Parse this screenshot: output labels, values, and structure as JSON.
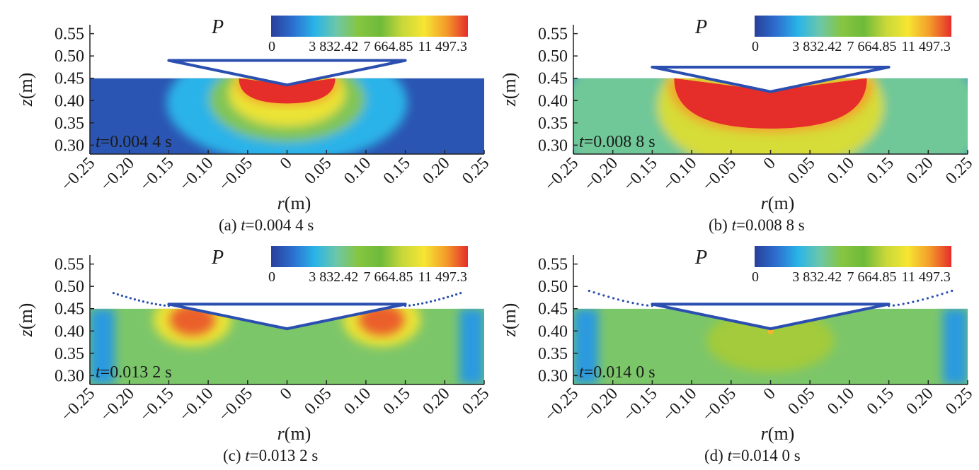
{
  "figure": {
    "panels": [
      {
        "caption_label": "(a)",
        "caption_var": "t",
        "caption_value": "=0.004 4 s",
        "time_var": "t",
        "time_value": "=0.004 4 s"
      },
      {
        "caption_label": "(b)",
        "caption_var": "t",
        "caption_value": "=0.008 8 s",
        "time_var": "t",
        "time_value": "=0.008 8 s"
      },
      {
        "caption_label": "(c)",
        "caption_var": "t",
        "caption_value": "=0.013 2 s",
        "time_var": "t",
        "time_value": "=0.013 2 s"
      },
      {
        "caption_label": "(d)",
        "caption_var": "t",
        "caption_value": "=0.014 0 s",
        "time_var": "t",
        "time_value": "=0.014 0 s"
      }
    ]
  },
  "chart_data": [
    {
      "type": "heatmap",
      "title": "P",
      "xlabel_var": "r",
      "xlabel_unit": "(m)",
      "ylabel_var": "z",
      "ylabel_unit": "(m)",
      "xlim": [
        -0.25,
        0.25
      ],
      "ylim": [
        0.28,
        0.57
      ],
      "x_ticks": [
        "−0.25",
        "−0.20",
        "−0.15",
        "−0.10",
        "−0.05",
        "0",
        "0.05",
        "0.10",
        "0.15",
        "0.20",
        "0.25"
      ],
      "x_tick_values": [
        -0.25,
        -0.2,
        -0.15,
        -0.1,
        -0.05,
        0,
        0.05,
        0.1,
        0.15,
        0.2,
        0.25
      ],
      "y_ticks": [
        "0.30",
        "0.35",
        "0.40",
        "0.45",
        "0.50",
        "0.55"
      ],
      "y_tick_values": [
        0.3,
        0.35,
        0.4,
        0.45,
        0.5,
        0.55
      ],
      "colorbar_ticks": [
        "0",
        "3 832.42",
        "7 664.85",
        "11 497.3"
      ],
      "colorbar_tick_values": [
        0,
        3832.42,
        7664.85,
        11497.3
      ],
      "time": "t=0.004 4 s",
      "free_surface_z": 0.45,
      "wedge": {
        "top_z": 0.49,
        "half_width": 0.15,
        "apex_z": 0.435
      },
      "high_pressure_zone": {
        "half_width": 0.065,
        "depth_z": 0.39,
        "intensity": 1.0
      }
    },
    {
      "type": "heatmap",
      "title": "P",
      "xlabel_var": "r",
      "xlabel_unit": "(m)",
      "ylabel_var": "z",
      "ylabel_unit": "(m)",
      "xlim": [
        -0.25,
        0.25
      ],
      "ylim": [
        0.28,
        0.57
      ],
      "x_ticks": [
        "−0.25",
        "−0.20",
        "−0.15",
        "−0.10",
        "−0.05",
        "0",
        "0.05",
        "0.10",
        "0.15",
        "0.20",
        "0.25"
      ],
      "x_tick_values": [
        -0.25,
        -0.2,
        -0.15,
        -0.1,
        -0.05,
        0,
        0.05,
        0.1,
        0.15,
        0.2,
        0.25
      ],
      "y_ticks": [
        "0.30",
        "0.35",
        "0.40",
        "0.45",
        "0.50",
        "0.55"
      ],
      "y_tick_values": [
        0.3,
        0.35,
        0.4,
        0.45,
        0.5,
        0.55
      ],
      "colorbar_ticks": [
        "0",
        "3 832.42",
        "7 664.85",
        "11 497.3"
      ],
      "colorbar_tick_values": [
        0,
        3832.42,
        7664.85,
        11497.3
      ],
      "time": "t=0.008 8 s",
      "free_surface_z": 0.45,
      "wedge": {
        "top_z": 0.475,
        "half_width": 0.15,
        "apex_z": 0.42
      },
      "high_pressure_zone": {
        "half_width": 0.13,
        "depth_z": 0.33,
        "intensity": 1.0
      }
    },
    {
      "type": "heatmap",
      "title": "P",
      "xlabel_var": "r",
      "xlabel_unit": "(m)",
      "ylabel_var": "z",
      "ylabel_unit": "(m)",
      "xlim": [
        -0.25,
        0.25
      ],
      "ylim": [
        0.28,
        0.57
      ],
      "x_ticks": [
        "−0.25",
        "−0.20",
        "−0.15",
        "−0.10",
        "−0.05",
        "0",
        "0.05",
        "0.10",
        "0.15",
        "0.20",
        "0.25"
      ],
      "x_tick_values": [
        -0.25,
        -0.2,
        -0.15,
        -0.1,
        -0.05,
        0,
        0.05,
        0.1,
        0.15,
        0.2,
        0.25
      ],
      "y_ticks": [
        "0.30",
        "0.35",
        "0.40",
        "0.45",
        "0.50",
        "0.55"
      ],
      "y_tick_values": [
        0.3,
        0.35,
        0.4,
        0.45,
        0.5,
        0.55
      ],
      "colorbar_ticks": [
        "0",
        "3 832.42",
        "7 664.85",
        "11 497.3"
      ],
      "colorbar_tick_values": [
        0,
        3832.42,
        7664.85,
        11497.3
      ],
      "time": "t=0.013 2 s",
      "free_surface_z": 0.45,
      "wedge": {
        "top_z": 0.46,
        "half_width": 0.15,
        "apex_z": 0.405
      },
      "side_hot_spots": {
        "x": 0.12,
        "z": 0.425,
        "intensity": 0.95
      },
      "spray_end": {
        "x": 0.22,
        "z": 0.485
      }
    },
    {
      "type": "heatmap",
      "title": "P",
      "xlabel_var": "r",
      "xlabel_unit": "(m)",
      "ylabel_var": "z",
      "ylabel_unit": "(m)",
      "xlim": [
        -0.25,
        0.25
      ],
      "ylim": [
        0.28,
        0.57
      ],
      "x_ticks": [
        "−0.25",
        "−0.20",
        "−0.15",
        "−0.10",
        "−0.05",
        "0",
        "0.05",
        "0.10",
        "0.15",
        "0.20",
        "0.25"
      ],
      "x_tick_values": [
        -0.25,
        -0.2,
        -0.15,
        -0.1,
        -0.05,
        0,
        0.05,
        0.1,
        0.15,
        0.2,
        0.25
      ],
      "y_ticks": [
        "0.30",
        "0.35",
        "0.40",
        "0.45",
        "0.50",
        "0.55"
      ],
      "y_tick_values": [
        0.3,
        0.35,
        0.4,
        0.45,
        0.5,
        0.55
      ],
      "colorbar_ticks": [
        "0",
        "3 832.42",
        "7 664.85",
        "11 497.3"
      ],
      "colorbar_tick_values": [
        0,
        3832.42,
        7664.85,
        11497.3
      ],
      "time": "t=0.014 0 s",
      "free_surface_z": 0.45,
      "wedge": {
        "top_z": 0.46,
        "half_width": 0.15,
        "apex_z": 0.405
      },
      "apex_spot_intensity": 0.85,
      "spray_end": {
        "x": 0.23,
        "z": 0.49
      }
    }
  ],
  "colors": {
    "colormap": [
      "#2a3f9a",
      "#2c6fd0",
      "#2ab4e8",
      "#6cc7a8",
      "#86c540",
      "#6fba3a",
      "#c8d83a",
      "#f6e632",
      "#f39c2a",
      "#e52d2a"
    ],
    "wedge_stroke": "#2b4fb0",
    "spray": "#2b4fb0"
  }
}
